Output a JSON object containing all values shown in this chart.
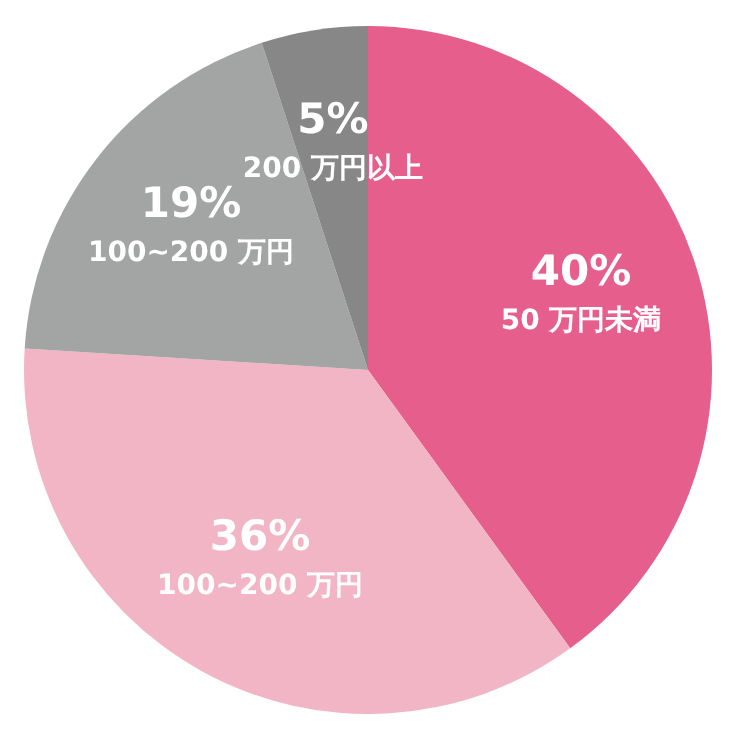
{
  "chart_data": {
    "type": "pie",
    "categories": [
      "50 万円未満",
      "100~200 万円",
      "100~200 万円",
      "200 万円以上"
    ],
    "values": [
      40,
      36,
      19,
      5
    ],
    "colors": [
      "#e65f8c",
      "#f2b5c6",
      "#a3a4a4",
      "#878787"
    ],
    "value_labels": [
      "40%",
      "36%",
      "19%",
      "5%"
    ]
  }
}
